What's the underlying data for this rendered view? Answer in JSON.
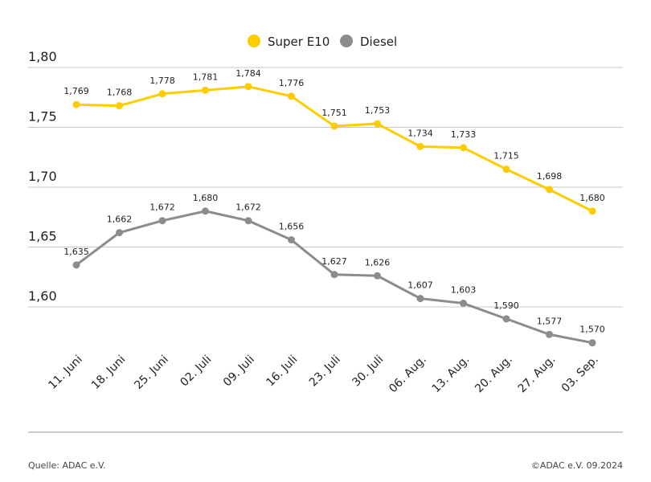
{
  "chart_data": {
    "type": "line",
    "categories": [
      "11. Juni",
      "18. Juni",
      "25. Juni",
      "02. Juli",
      "09. Juli",
      "16. Juli",
      "23. Juli",
      "30. Juli",
      "06. Aug.",
      "13. Aug.",
      "20. Aug.",
      "27. Aug.",
      "03. Sep."
    ],
    "series": [
      {
        "name": "Super E10",
        "color": "#ffcc00",
        "values": [
          1.769,
          1.768,
          1.778,
          1.781,
          1.784,
          1.776,
          1.751,
          1.753,
          1.734,
          1.733,
          1.715,
          1.698,
          1.68
        ],
        "labels": [
          "1,769",
          "1,768",
          "1,778",
          "1,781",
          "1,784",
          "1,776",
          "1,751",
          "1,753",
          "1,734",
          "1,733",
          "1,715",
          "1,698",
          "1,680"
        ]
      },
      {
        "name": "Diesel",
        "color": "#8c8c8c",
        "values": [
          1.635,
          1.662,
          1.672,
          1.68,
          1.672,
          1.656,
          1.627,
          1.626,
          1.607,
          1.603,
          1.59,
          1.577,
          1.57
        ],
        "labels": [
          "1,635",
          "1,662",
          "1,672",
          "1,680",
          "1,672",
          "1,656",
          "1,627",
          "1,626",
          "1,607",
          "1,603",
          "1,590",
          "1,577",
          "1,570"
        ]
      }
    ],
    "yticks": [
      1.8,
      1.75,
      1.7,
      1.65,
      1.6
    ],
    "ytick_labels": [
      "1,80",
      "1,75",
      "1,70",
      "1,65",
      "1,60"
    ],
    "ylim": [
      1.55,
      1.8
    ],
    "grid": true,
    "legend": "top-center"
  },
  "footer": {
    "source": "Quelle: ADAC e.V.",
    "copyright": "©ADAC e.V. 09.2024"
  }
}
